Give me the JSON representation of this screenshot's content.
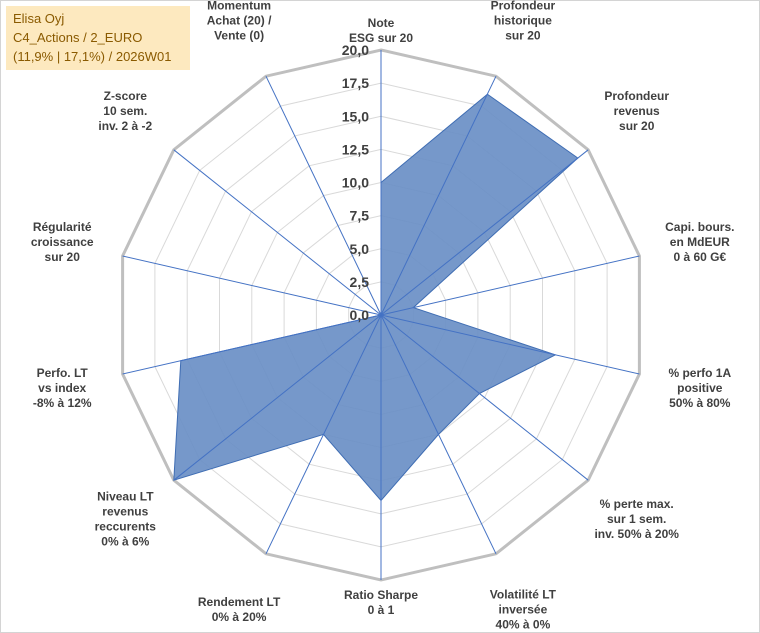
{
  "title_box": {
    "line1": "Elisa Oyj",
    "line2": "C4_Actions / 2_EURO",
    "line3": "(11,9% | 17,1%) / 2026W01"
  },
  "chart_data": {
    "type": "radar",
    "range": [
      0,
      20
    ],
    "tick_values": [
      0,
      2.5,
      5,
      7.5,
      10,
      12.5,
      15,
      17.5,
      20
    ],
    "tick_labels": [
      "0,0",
      "2,5",
      "5,0",
      "7,5",
      "10,0",
      "12,5",
      "15,0",
      "17,5",
      "20,0"
    ],
    "fill_color": "#6a8fc6",
    "line_color": "#3f6db3",
    "grid_color": "#d9d9d9",
    "outer_ring_color": "#bfbfbf",
    "spoke_color": "#4472c4",
    "axes": [
      {
        "label": [
          "Note",
          "ESG sur 20"
        ],
        "value": 10
      },
      {
        "label": [
          "Profondeur",
          "historique",
          "sur 20"
        ],
        "value": 18.5
      },
      {
        "label": [
          "Profondeur",
          "revenus",
          "sur 20"
        ],
        "value": 19
      },
      {
        "label": [
          "Capi. bours.",
          "en MdEUR",
          "0 à 60 G€"
        ],
        "value": 2.5
      },
      {
        "label": [
          "% perfo 1A",
          "positive",
          "50% à 80%"
        ],
        "value": 13.5
      },
      {
        "label": [
          "% perte max.",
          "sur 1 sem.",
          "inv. 50% à 20%"
        ],
        "value": 9.5
      },
      {
        "label": [
          "Volatilité LT",
          "inversée",
          "40% à 0%"
        ],
        "value": 10
      },
      {
        "label": [
          "Ratio Sharpe",
          "0 à 1"
        ],
        "value": 14
      },
      {
        "label": [
          "Rendement LT",
          "0% à 20%"
        ],
        "value": 10
      },
      {
        "label": [
          "Niveau LT",
          "revenus",
          "reccurents",
          "0% à 6%"
        ],
        "value": 20
      },
      {
        "label": [
          "Perfo. LT",
          "vs index",
          "-8% à 12%"
        ],
        "value": 15.5
      },
      {
        "label": [
          "Régularité",
          "croissance",
          "sur 20"
        ],
        "value": 0
      },
      {
        "label": [
          "Z-score",
          "10 sem.",
          "inv. 2 à -2"
        ],
        "value": 0
      },
      {
        "label": [
          "Momentum",
          "Achat (20) /",
          "Vente (0)"
        ],
        "value": 0
      }
    ]
  }
}
